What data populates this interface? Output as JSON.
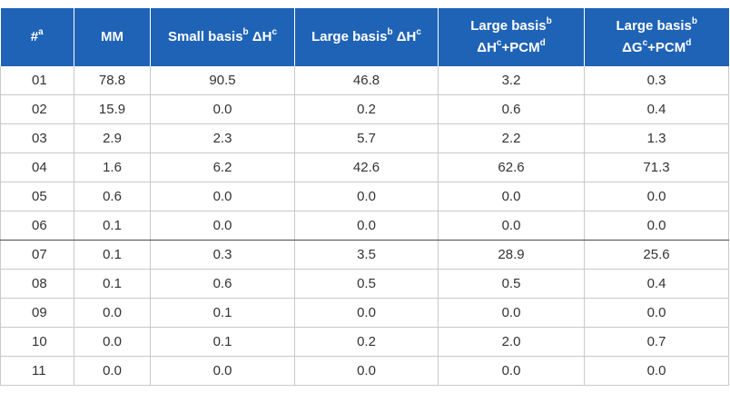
{
  "header": {
    "col_num": {
      "text": "#",
      "sup": "a"
    },
    "col_mm": {
      "text": "MM"
    },
    "col_small_dh": {
      "text1": "Small basis",
      "sup1": "b",
      "text2": " ΔH",
      "sup2": "c"
    },
    "col_large_dh": {
      "text1": "Large basis",
      "sup1": "b",
      "text2": " ΔH",
      "sup2": "c"
    },
    "col_large_dh_pcm": {
      "line1": "Large basis",
      "line1_sup": "b",
      "line2a": "ΔH",
      "line2a_sup": "c",
      "line2b": "+PCM",
      "line2b_sup": "d"
    },
    "col_large_dg_pcm": {
      "line1": "Large basis",
      "line1_sup": "b",
      "line2a": "ΔG",
      "line2a_sup": "c",
      "line2b": "+PCM",
      "line2b_sup": "d"
    }
  },
  "rows": [
    [
      "01",
      "78.8",
      "90.5",
      "46.8",
      "3.2",
      "0.3"
    ],
    [
      "02",
      "15.9",
      "0.0",
      "0.2",
      "0.6",
      "0.4"
    ],
    [
      "03",
      "2.9",
      "2.3",
      "5.7",
      "2.2",
      "1.3"
    ],
    [
      "04",
      "1.6",
      "6.2",
      "42.6",
      "62.6",
      "71.3"
    ],
    [
      "05",
      "0.6",
      "0.0",
      "0.0",
      "0.0",
      "0.0"
    ],
    [
      "06",
      "0.1",
      "0.0",
      "0.0",
      "0.0",
      "0.0"
    ],
    [
      "07",
      "0.1",
      "0.3",
      "3.5",
      "28.9",
      "25.6"
    ],
    [
      "08",
      "0.1",
      "0.6",
      "0.5",
      "0.5",
      "0.4"
    ],
    [
      "09",
      "0.0",
      "0.1",
      "0.0",
      "0.0",
      "0.0"
    ],
    [
      "10",
      "0.0",
      "0.1",
      "0.2",
      "2.0",
      "0.7"
    ],
    [
      "11",
      "0.0",
      "0.0",
      "0.0",
      "0.0",
      "0.0"
    ]
  ],
  "colors": {
    "header_bg": "#1f63b6",
    "header_text": "#ffffff",
    "cell_text": "#333333",
    "grid_line": "#c9c9c9",
    "separator_line": "#4a4a4a"
  }
}
